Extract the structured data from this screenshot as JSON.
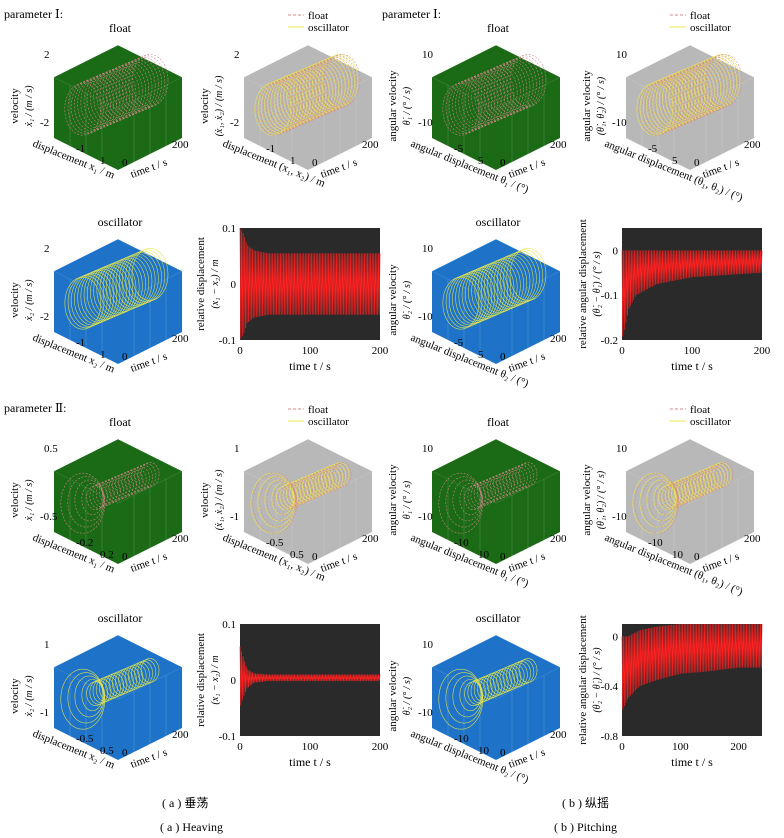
{
  "chart_data": {
    "type": "line",
    "legend": {
      "float": "float",
      "oscillator": "oscillator"
    },
    "colors": {
      "float_line": "#d9868f",
      "oscillator_line": "#e8e84a",
      "float_bg": "#1b6b16",
      "oscillator_bg": "#1e73c8",
      "gray_bg": "#b8b8b8",
      "dark_bg": "#2a2a2a",
      "relative_line": "#ff2020"
    },
    "panels": [
      {
        "row": 0,
        "section": "heaving",
        "type": "3d-trajectory",
        "bg": "float",
        "title": "float",
        "group_label": "parameter Ⅰ:",
        "zlabel": "velocity",
        "zsym": "ẋ₁ / (m / s)",
        "xlabel": "displacement x₁ / m",
        "ylabel": "time t / s",
        "zticks": [
          "2",
          "-2"
        ],
        "xticks": [
          "1",
          "-1"
        ],
        "yticks": [
          "0",
          "200"
        ]
      },
      {
        "row": 0,
        "section": "heaving",
        "type": "3d-trajectory",
        "bg": "gray",
        "legend": true,
        "zlabel": "velocity",
        "zsym": "(ẋ₁, ẋ₂) / (m / s)",
        "xlabel": "displacement (x₁, x₂) / m",
        "ylabel": "time t / s",
        "zticks": [
          "2",
          "-2"
        ],
        "xticks": [
          "1",
          "-1"
        ],
        "yticks": [
          "0",
          "200"
        ]
      },
      {
        "row": 0,
        "section": "pitching",
        "type": "3d-trajectory",
        "bg": "float",
        "title": "float",
        "group_label": "parameter Ⅰ:",
        "zlabel": "angular velocity",
        "zsym": "θ̇₁ / (° / s)",
        "xlabel": "angular displacement θ₁ / (°)",
        "ylabel": "time t / s",
        "zticks": [
          "10",
          "-10"
        ],
        "xticks": [
          "5",
          "-5"
        ],
        "yticks": [
          "0",
          "200"
        ]
      },
      {
        "row": 0,
        "section": "pitching",
        "type": "3d-trajectory",
        "bg": "gray",
        "legend": true,
        "zlabel": "angular velocity",
        "zsym": "(θ̇₁, θ̇₂) / (° / s)",
        "xlabel": "angular displacement (θ₁, θ₂) / (°)",
        "ylabel": "time t / s",
        "zticks": [
          "10",
          "-10"
        ],
        "xticks": [
          "5",
          "-5"
        ],
        "yticks": [
          "0",
          "200"
        ]
      },
      {
        "row": 1,
        "section": "heaving",
        "type": "3d-trajectory",
        "bg": "oscillator",
        "title": "oscillator",
        "zlabel": "velocity",
        "zsym": "ẋ₂ / (m / s)",
        "xlabel": "displacement x₂ / m",
        "ylabel": "time t / s",
        "zticks": [
          "2",
          "-2"
        ],
        "xticks": [
          "1",
          "-1"
        ],
        "yticks": [
          "0",
          "200"
        ]
      },
      {
        "row": 1,
        "section": "heaving",
        "type": "2d-relative",
        "ylabel1": "relative displacement",
        "ylabel2": "(x₁ − x₂) / m",
        "xlabel": "time t / s",
        "xlim": [
          0,
          200
        ],
        "ylim": [
          -0.1,
          0.1
        ],
        "xticks": [
          "0",
          "100",
          "200"
        ],
        "yticks": [
          "0.1",
          "0",
          "-0.1"
        ],
        "series": [
          {
            "x": [
              0,
              5,
              10,
              20,
              40,
              80,
              120,
              160,
              200
            ],
            "envelope_top": [
              0.1,
              0.09,
              0.07,
              0.06,
              0.055,
              0.055,
              0.055,
              0.055,
              0.055
            ],
            "envelope_bottom": [
              -0.1,
              -0.09,
              -0.07,
              -0.06,
              -0.055,
              -0.055,
              -0.055,
              -0.055,
              -0.055
            ]
          }
        ]
      },
      {
        "row": 1,
        "section": "pitching",
        "type": "3d-trajectory",
        "bg": "oscillator",
        "title": "oscillator",
        "zlabel": "angular velocity",
        "zsym": "θ̇₂ / (° / s)",
        "xlabel": "angular displacement θ₂ / (°)",
        "ylabel": "time t / s",
        "zticks": [
          "10",
          "-10"
        ],
        "xticks": [
          "5",
          "-5"
        ],
        "yticks": [
          "0",
          "200"
        ]
      },
      {
        "row": 1,
        "section": "pitching",
        "type": "2d-relative",
        "ylabel1": "relative  angular displacement",
        "ylabel2": "(θ̇₂ − θ̇₁) / (° / s)",
        "xlabel": "time t / s",
        "xlim": [
          0,
          200
        ],
        "ylim": [
          -0.2,
          0.05
        ],
        "xticks": [
          "0",
          "100",
          "200"
        ],
        "yticks": [
          "0",
          "-0.1",
          "-0.2"
        ],
        "series": [
          {
            "x": [
              0,
              10,
              20,
              50,
              100,
              150,
              200
            ],
            "envelope_top": [
              0.0,
              0.0,
              0.0,
              0.0,
              0.0,
              0.0,
              0.0
            ],
            "envelope_bottom": [
              -0.2,
              -0.13,
              -0.1,
              -0.075,
              -0.06,
              -0.055,
              -0.05
            ]
          }
        ]
      },
      {
        "row": 2,
        "section": "heaving",
        "type": "3d-trajectory",
        "bg": "float",
        "title": "float",
        "group_label": "parameter Ⅱ:",
        "zlabel": "velocity",
        "zsym": "ẋ₁ / (m / s)",
        "xlabel": "displacement x₁ / m",
        "ylabel": "time t / s",
        "zticks": [
          "0.5",
          "-0.5"
        ],
        "xticks": [
          "0.2",
          "-0.2"
        ],
        "yticks": [
          "0",
          "200"
        ]
      },
      {
        "row": 2,
        "section": "heaving",
        "type": "3d-trajectory",
        "bg": "gray",
        "legend": true,
        "zlabel": "velocity",
        "zsym": "(ẋ₁, ẋ₂) / (m / s)",
        "xlabel": "displacement (x₁, x₂) / m",
        "ylabel": "time t / s",
        "zticks": [
          "1",
          "-1"
        ],
        "xticks": [
          "0.5",
          "-0.5"
        ],
        "yticks": [
          "0",
          "200"
        ]
      },
      {
        "row": 2,
        "section": "pitching",
        "type": "3d-trajectory",
        "bg": "float",
        "title": "float",
        "zlabel": "angular velocity",
        "zsym": "θ̇₁ / (° / s)",
        "xlabel": "angular displacement θ₁ / (°)",
        "ylabel": "time t / s",
        "zticks": [
          "10",
          "-10"
        ],
        "xticks": [
          "10",
          "-10"
        ],
        "yticks": [
          "0",
          "200"
        ]
      },
      {
        "row": 2,
        "section": "pitching",
        "type": "3d-trajectory",
        "bg": "gray",
        "legend": true,
        "zlabel": "angular velocity",
        "zsym": "(θ̇₁, θ̇₂) / (° / s)",
        "xlabel": "angular displacement (θ₁, θ₂) / (°)",
        "ylabel": "time t / s",
        "zticks": [
          "10",
          "-10"
        ],
        "xticks": [
          "10",
          "-10"
        ],
        "yticks": [
          "0",
          "200"
        ]
      },
      {
        "row": 3,
        "section": "heaving",
        "type": "3d-trajectory",
        "bg": "oscillator",
        "title": "oscillator",
        "zlabel": "velocity",
        "zsym": "ẋ₂ / (m / s)",
        "xlabel": "displacement x₂ / m",
        "ylabel": "time t / s",
        "zticks": [
          "1",
          "-1"
        ],
        "xticks": [
          "0.5",
          "-0.5"
        ],
        "yticks": [
          "0",
          "200"
        ]
      },
      {
        "row": 3,
        "section": "heaving",
        "type": "2d-relative",
        "ylabel1": "relative displacement",
        "ylabel2": "(x₁ − x₂) / m",
        "xlabel": "time t / s",
        "xlim": [
          0,
          200
        ],
        "ylim": [
          -0.1,
          0.1
        ],
        "xticks": [
          "0",
          "100",
          "200"
        ],
        "yticks": [
          "0.1",
          "0",
          "-0.1"
        ],
        "series": [
          {
            "x": [
              0,
              5,
              10,
              20,
              40,
              80,
              120,
              160,
              200
            ],
            "envelope_top": [
              0.06,
              0.04,
              0.02,
              0.012,
              0.01,
              0.01,
              0.01,
              0.01,
              0.01
            ],
            "envelope_bottom": [
              -0.05,
              -0.03,
              -0.015,
              -0.005,
              -0.002,
              -0.002,
              -0.002,
              -0.002,
              -0.002
            ]
          }
        ]
      },
      {
        "row": 3,
        "section": "pitching",
        "type": "3d-trajectory",
        "bg": "oscillator",
        "title": "oscillator",
        "zlabel": "angular velocity",
        "zsym": "θ̇₂ / (° / s)",
        "xlabel": "angular displacement θ₂ / (°)",
        "ylabel": "time t / s",
        "zticks": [
          "10",
          "-10"
        ],
        "xticks": [
          "10",
          "-10"
        ],
        "yticks": [
          "0",
          "200"
        ]
      },
      {
        "row": 3,
        "section": "pitching",
        "type": "2d-relative",
        "ylabel1": "relative  angular displacement",
        "ylabel2": "(θ̇₂ − θ̇₁) / (° / s)",
        "xlabel": "time t / s",
        "xlim": [
          0,
          240
        ],
        "ylim": [
          -0.8,
          0.1
        ],
        "xticks": [
          "0",
          "100",
          "200"
        ],
        "yticks": [
          "0",
          "-0.4",
          "-0.8"
        ],
        "series": [
          {
            "x": [
              0,
              10,
              30,
              60,
              100,
              150,
              200,
              240
            ],
            "envelope_top": [
              0.0,
              0.0,
              0.05,
              0.08,
              0.1,
              0.1,
              0.1,
              0.1
            ],
            "envelope_bottom": [
              -0.6,
              -0.5,
              -0.4,
              -0.35,
              -0.3,
              -0.28,
              -0.25,
              -0.25
            ]
          }
        ]
      }
    ]
  },
  "captions": {
    "a_cn": "( a )  垂荡",
    "a_en": "( a )  Heaving",
    "b_cn": "( b )  纵摇",
    "b_en": "( b )  Pitching"
  }
}
